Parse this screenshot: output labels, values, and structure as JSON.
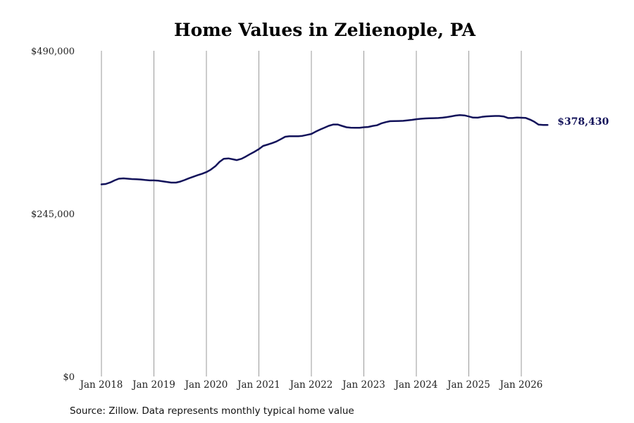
{
  "chart_data": {
    "type": "line",
    "title": "Home Values in Zelienople, PA",
    "xlabel": "",
    "ylabel": "",
    "ylim": [
      0,
      490000
    ],
    "yticks": [
      {
        "value": 0,
        "label": "$0"
      },
      {
        "value": 245000,
        "label": "$245,000"
      },
      {
        "value": 490000,
        "label": "$490,000"
      }
    ],
    "xticks": [
      {
        "value": 2018.0,
        "label": "Jan 2018"
      },
      {
        "value": 2019.0,
        "label": "Jan 2019"
      },
      {
        "value": 2020.0,
        "label": "Jan 2020"
      },
      {
        "value": 2021.0,
        "label": "Jan 2021"
      },
      {
        "value": 2022.0,
        "label": "Jan 2022"
      },
      {
        "value": 2023.0,
        "label": "Jan 2023"
      },
      {
        "value": 2024.0,
        "label": "Jan 2024"
      },
      {
        "value": 2025.0,
        "label": "Jan 2025"
      },
      {
        "value": 2026.0,
        "label": "Jan 2026"
      }
    ],
    "xlim": [
      2018.0,
      2026.5
    ],
    "grid": "vertical",
    "series": [
      {
        "color": "#12125a",
        "x": [
          2018.0,
          2018.08,
          2018.17,
          2018.25,
          2018.33,
          2018.42,
          2018.5,
          2018.58,
          2018.67,
          2018.75,
          2018.83,
          2018.92,
          2019.0,
          2019.08,
          2019.17,
          2019.25,
          2019.33,
          2019.42,
          2019.5,
          2019.58,
          2019.67,
          2019.75,
          2019.83,
          2019.92,
          2020.0,
          2020.08,
          2020.17,
          2020.25,
          2020.33,
          2020.42,
          2020.5,
          2020.58,
          2020.67,
          2020.75,
          2020.83,
          2020.92,
          2021.0,
          2021.08,
          2021.17,
          2021.25,
          2021.33,
          2021.42,
          2021.5,
          2021.58,
          2021.67,
          2021.75,
          2021.83,
          2021.92,
          2022.0,
          2022.08,
          2022.17,
          2022.25,
          2022.33,
          2022.42,
          2022.5,
          2022.58,
          2022.67,
          2022.75,
          2022.83,
          2022.92,
          2023.0,
          2023.08,
          2023.17,
          2023.25,
          2023.33,
          2023.42,
          2023.5,
          2023.58,
          2023.67,
          2023.75,
          2023.83,
          2023.92,
          2024.0,
          2024.08,
          2024.17,
          2024.25,
          2024.33,
          2024.42,
          2024.5,
          2024.58,
          2024.67,
          2024.75,
          2024.83,
          2024.92,
          2025.0,
          2025.08,
          2025.17,
          2025.25,
          2025.33,
          2025.42,
          2025.5,
          2025.58,
          2025.67,
          2025.75,
          2025.83,
          2025.92,
          2026.0,
          2026.08,
          2026.17,
          2026.25,
          2026.33,
          2026.42,
          2026.5
        ],
        "values": [
          289000,
          289500,
          292000,
          295000,
          297500,
          298000,
          297500,
          297000,
          296800,
          296300,
          295600,
          295000,
          295000,
          294500,
          293600,
          292600,
          291700,
          291700,
          293100,
          295400,
          298200,
          300500,
          302700,
          305000,
          307500,
          311000,
          316300,
          322800,
          327500,
          328000,
          326800,
          325500,
          327500,
          330800,
          334400,
          338200,
          342000,
          346800,
          348900,
          351000,
          353400,
          357100,
          360600,
          361500,
          361300,
          361500,
          362000,
          363500,
          364800,
          368200,
          371600,
          374300,
          377000,
          379100,
          379100,
          377000,
          374900,
          374300,
          374100,
          374100,
          374900,
          375300,
          376900,
          377900,
          380600,
          382700,
          384000,
          384200,
          384400,
          384600,
          385300,
          386100,
          387000,
          387600,
          388200,
          388400,
          388600,
          388800,
          389300,
          390200,
          391400,
          392500,
          393200,
          392700,
          391200,
          389500,
          389300,
          390500,
          391300,
          391700,
          391900,
          391900,
          391000,
          388800,
          388800,
          389500,
          389200,
          389000,
          386300,
          383100,
          378800,
          378400,
          378430
        ]
      }
    ],
    "end_label": "$378,430"
  },
  "footer": {
    "source": "Source: Zillow. Data represents monthly typical home value"
  }
}
